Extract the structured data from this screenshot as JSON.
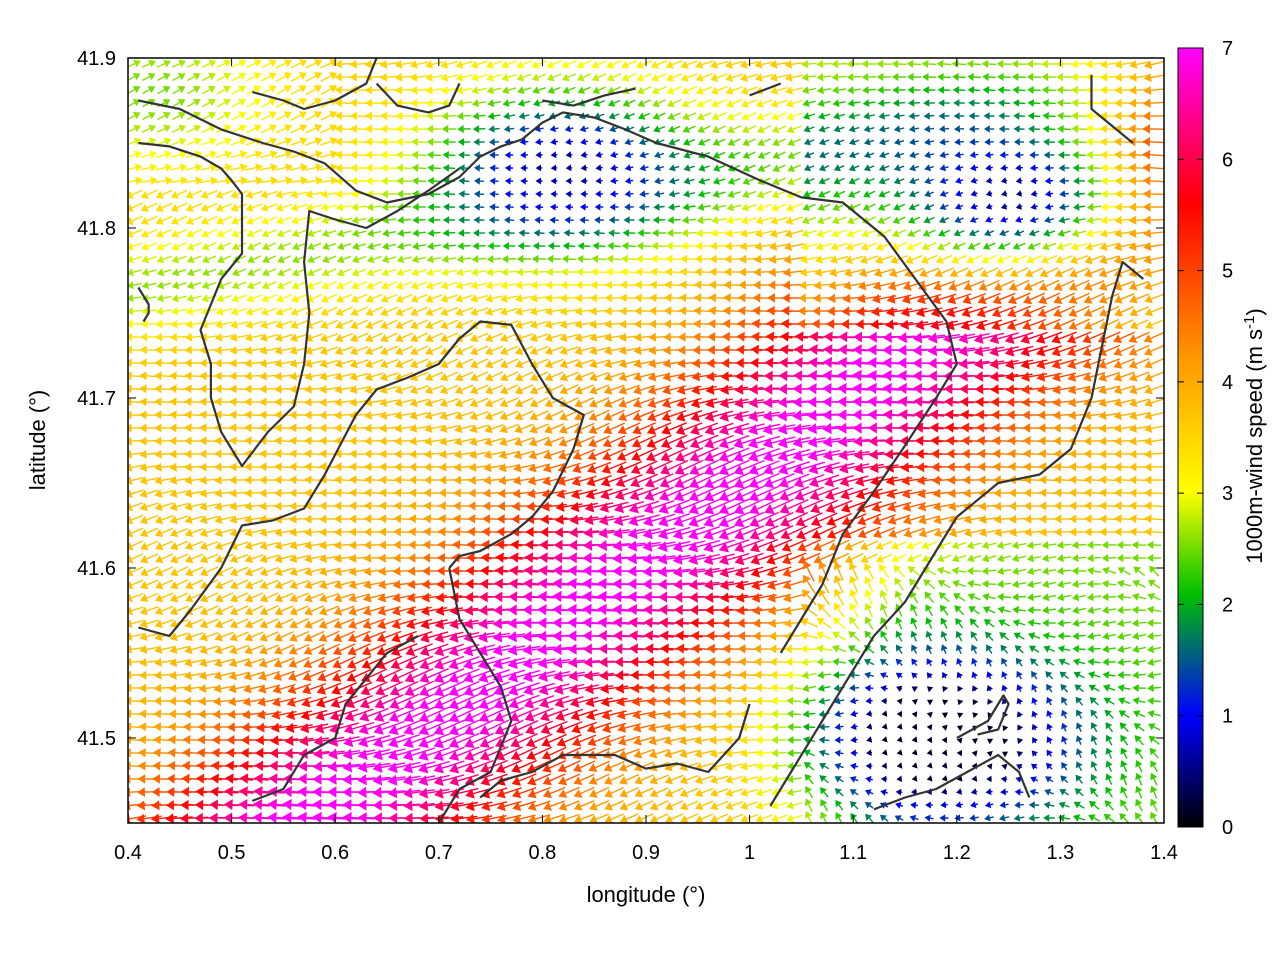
{
  "chart_data": {
    "type": "vector-field",
    "xlabel": "longitude (°)",
    "ylabel": "latitude (°)",
    "xlim": [
      0.4,
      1.4
    ],
    "ylim": [
      41.45,
      41.9
    ],
    "xticks": [
      "0.4",
      "0.5",
      "0.6",
      "0.7",
      "0.8",
      "0.9",
      "1",
      "1.1",
      "1.2",
      "1.3",
      "1.4"
    ],
    "yticks": [
      "41.5",
      "41.6",
      "41.7",
      "41.8",
      "41.9"
    ],
    "colorbar": {
      "label_main": "1000m-wind speed (m s",
      "label_sup": "-1",
      "label_close": ")",
      "range": [
        0,
        7
      ],
      "ticks": [
        "0",
        "1",
        "2",
        "3",
        "4",
        "5",
        "6",
        "7"
      ],
      "colormap": [
        "#000000",
        "#0000ff",
        "#00c000",
        "#ffff00",
        "#ff9900",
        "#ff0000",
        "#ff00ff"
      ]
    },
    "grid": false,
    "speed_field": {
      "description_units": "m s-1",
      "maxima": [
        {
          "lon": 0.85,
          "lat": 41.56,
          "speed": 7.0
        },
        {
          "lon": 0.7,
          "lat": 41.5,
          "speed": 6.8
        }
      ],
      "minima": [
        {
          "lon": 1.18,
          "lat": 41.5,
          "speed": 0.6
        },
        {
          "lon": 0.82,
          "lat": 41.835,
          "speed": 0.6
        },
        {
          "lon": 1.25,
          "lat": 41.82,
          "speed": 1.4
        },
        {
          "lon": 0.42,
          "lat": 41.88,
          "speed": 2.5
        }
      ]
    },
    "contours": [
      [
        [
          0.41,
          41.875
        ],
        [
          0.45,
          41.87
        ],
        [
          0.49,
          41.858
        ],
        [
          0.53,
          41.85
        ],
        [
          0.56,
          41.845
        ],
        [
          0.59,
          41.838
        ],
        [
          0.62,
          41.822
        ],
        [
          0.65,
          41.815
        ],
        [
          0.69,
          41.82
        ],
        [
          0.72,
          41.83
        ],
        [
          0.74,
          41.842
        ],
        [
          0.76,
          41.848
        ],
        [
          0.78,
          41.852
        ],
        [
          0.8,
          41.862
        ],
        [
          0.82,
          41.868
        ],
        [
          0.85,
          41.865
        ],
        [
          0.88,
          41.858
        ],
        [
          0.91,
          41.85
        ],
        [
          0.96,
          41.842
        ],
        [
          1.01,
          41.828
        ],
        [
          1.05,
          41.818
        ],
        [
          1.09,
          41.815
        ],
        [
          1.13,
          41.795
        ],
        [
          1.16,
          41.77
        ],
        [
          1.19,
          41.745
        ],
        [
          1.2,
          41.72
        ],
        [
          1.18,
          41.7
        ],
        [
          1.15,
          41.672
        ],
        [
          1.12,
          41.645
        ],
        [
          1.09,
          41.62
        ],
        [
          1.07,
          41.59
        ],
        [
          1.05,
          41.57
        ],
        [
          1.03,
          41.55
        ]
      ],
      [
        [
          0.41,
          41.85
        ],
        [
          0.44,
          41.848
        ],
        [
          0.47,
          41.842
        ],
        [
          0.49,
          41.835
        ],
        [
          0.5,
          41.828
        ],
        [
          0.51,
          41.82
        ],
        [
          0.51,
          41.8
        ],
        [
          0.51,
          41.785
        ],
        [
          0.49,
          41.77
        ],
        [
          0.48,
          41.755
        ],
        [
          0.47,
          41.74
        ],
        [
          0.48,
          41.72
        ],
        [
          0.48,
          41.7
        ],
        [
          0.49,
          41.68
        ],
        [
          0.51,
          41.66
        ],
        [
          0.535,
          41.68
        ],
        [
          0.56,
          41.695
        ],
        [
          0.57,
          41.72
        ],
        [
          0.575,
          41.75
        ],
        [
          0.57,
          41.78
        ],
        [
          0.575,
          41.81
        ],
        [
          0.6,
          41.805
        ],
        [
          0.63,
          41.8
        ],
        [
          0.66,
          41.81
        ],
        [
          0.69,
          41.822
        ],
        [
          0.72,
          41.835
        ]
      ],
      [
        [
          0.41,
          41.565
        ],
        [
          0.44,
          41.56
        ],
        [
          0.46,
          41.575
        ],
        [
          0.49,
          41.6
        ],
        [
          0.51,
          41.625
        ],
        [
          0.54,
          41.628
        ],
        [
          0.57,
          41.635
        ],
        [
          0.59,
          41.655
        ],
        [
          0.62,
          41.69
        ],
        [
          0.64,
          41.705
        ],
        [
          0.67,
          41.712
        ],
        [
          0.7,
          41.72
        ],
        [
          0.72,
          41.735
        ],
        [
          0.74,
          41.745
        ],
        [
          0.77,
          41.743
        ],
        [
          0.79,
          41.72
        ],
        [
          0.81,
          41.7
        ],
        [
          0.84,
          41.69
        ],
        [
          0.83,
          41.67
        ],
        [
          0.81,
          41.645
        ],
        [
          0.79,
          41.63
        ],
        [
          0.77,
          41.62
        ],
        [
          0.74,
          41.61
        ],
        [
          0.72,
          41.607
        ],
        [
          0.71,
          41.6
        ]
      ],
      [
        [
          0.71,
          41.6
        ],
        [
          0.72,
          41.57
        ],
        [
          0.74,
          41.55
        ],
        [
          0.76,
          41.53
        ],
        [
          0.77,
          41.51
        ],
        [
          0.75,
          41.48
        ],
        [
          0.72,
          41.47
        ],
        [
          0.7,
          41.45
        ]
      ],
      [
        [
          0.74,
          41.465
        ],
        [
          0.76,
          41.475
        ],
        [
          0.79,
          41.48
        ],
        [
          0.82,
          41.49
        ],
        [
          0.84,
          41.49
        ],
        [
          0.87,
          41.49
        ],
        [
          0.9,
          41.482
        ],
        [
          0.93,
          41.485
        ],
        [
          0.96,
          41.48
        ],
        [
          0.99,
          41.5
        ],
        [
          1.0,
          41.52
        ]
      ],
      [
        [
          0.52,
          41.463
        ],
        [
          0.55,
          41.47
        ],
        [
          0.57,
          41.49
        ],
        [
          0.6,
          41.5
        ],
        [
          0.61,
          41.52
        ],
        [
          0.63,
          41.535
        ],
        [
          0.65,
          41.55
        ],
        [
          0.68,
          41.56
        ]
      ],
      [
        [
          1.02,
          41.46
        ],
        [
          1.04,
          41.48
        ],
        [
          1.06,
          41.5
        ],
        [
          1.08,
          41.52
        ],
        [
          1.1,
          41.54
        ],
        [
          1.12,
          41.56
        ],
        [
          1.15,
          41.58
        ],
        [
          1.17,
          41.6
        ],
        [
          1.2,
          41.63
        ],
        [
          1.24,
          41.65
        ],
        [
          1.28,
          41.655
        ],
        [
          1.31,
          41.67
        ],
        [
          1.33,
          41.7
        ],
        [
          1.34,
          41.73
        ],
        [
          1.35,
          41.76
        ],
        [
          1.36,
          41.78
        ],
        [
          1.38,
          41.77
        ]
      ],
      [
        [
          1.12,
          41.458
        ],
        [
          1.15,
          41.465
        ],
        [
          1.18,
          41.47
        ],
        [
          1.21,
          41.48
        ],
        [
          1.24,
          41.49
        ],
        [
          1.26,
          41.48
        ],
        [
          1.27,
          41.465
        ]
      ],
      [
        [
          1.2,
          41.5
        ],
        [
          1.23,
          41.51
        ],
        [
          1.24,
          41.52
        ],
        [
          1.245,
          41.525
        ],
        [
          1.25,
          41.52
        ],
        [
          1.24,
          41.505
        ],
        [
          1.22,
          41.502
        ]
      ],
      [
        [
          0.64,
          41.885
        ],
        [
          0.66,
          41.872
        ],
        [
          0.69,
          41.868
        ],
        [
          0.71,
          41.872
        ],
        [
          0.72,
          41.885
        ]
      ],
      [
        [
          0.8,
          41.875
        ],
        [
          0.83,
          41.872
        ],
        [
          0.86,
          41.878
        ],
        [
          0.89,
          41.882
        ]
      ],
      [
        [
          1.0,
          41.878
        ],
        [
          1.03,
          41.885
        ]
      ],
      [
        [
          1.33,
          41.89
        ],
        [
          1.33,
          41.87
        ],
        [
          1.35,
          41.86
        ],
        [
          1.37,
          41.85
        ]
      ],
      [
        [
          0.41,
          41.765
        ],
        [
          0.42,
          41.755
        ],
        [
          0.42,
          41.75
        ],
        [
          0.415,
          41.745
        ]
      ],
      [
        [
          0.52,
          41.88
        ],
        [
          0.55,
          41.875
        ],
        [
          0.57,
          41.87
        ],
        [
          0.6,
          41.875
        ],
        [
          0.63,
          41.885
        ],
        [
          0.64,
          41.9
        ]
      ]
    ]
  }
}
